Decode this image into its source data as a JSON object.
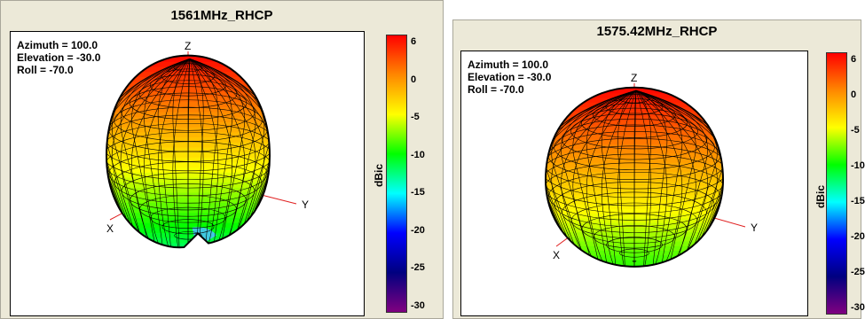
{
  "chart_data": [
    {
      "type": "3d-radiation-pattern",
      "title": "1561MHz_RHCP",
      "view": {
        "azimuth": "Azimuth = 100.0",
        "elevation": "Elevation = -30.0",
        "roll": "Roll = -70.0"
      },
      "axes": {
        "x": "X",
        "y": "Y",
        "z": "Z"
      },
      "colorbar": {
        "label": "dBic",
        "ticks": [
          "6",
          "0",
          "-5",
          "-10",
          "-15",
          "-20",
          "-25",
          "-30"
        ],
        "range": [
          -30,
          6
        ]
      },
      "pattern_shape": "mostly-hemispherical-with-dip-near-bottom",
      "peak_region": "top-red-orange",
      "low_region": "bottom-blue-dent"
    },
    {
      "type": "3d-radiation-pattern",
      "title": "1575.42MHz_RHCP",
      "view": {
        "azimuth": "Azimuth = 100.0",
        "elevation": "Elevation = -30.0",
        "roll": "Roll = -70.0"
      },
      "axes": {
        "x": "X",
        "y": "Y",
        "z": "Z"
      },
      "colorbar": {
        "label": "dBic",
        "ticks": [
          "6",
          "0",
          "-5",
          "-10",
          "-15",
          "-20",
          "-25",
          "-30"
        ],
        "range": [
          -30,
          6
        ]
      },
      "pattern_shape": "spherical-cardioid",
      "peak_region": "top-red-orange",
      "low_region": "bottom-green"
    }
  ],
  "colors": {
    "panel_bg": "#ece9d8",
    "plot_bg": "#ffffff",
    "axis_line": "#e02020",
    "mesh_line": "#000000",
    "colorbar_stops": [
      "#ff0000",
      "#ff8800",
      "#ffff00",
      "#00ff00",
      "#00ffff",
      "#0000ff",
      "#000080",
      "#800080"
    ]
  }
}
